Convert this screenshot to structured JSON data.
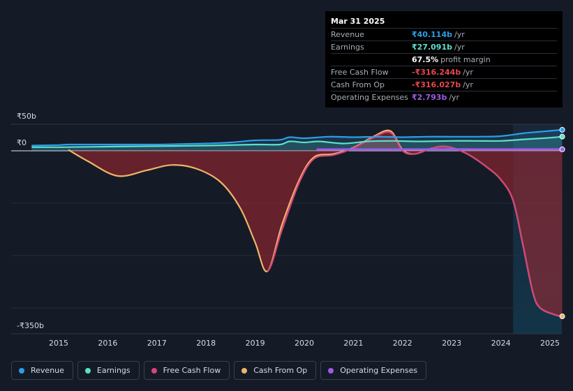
{
  "chart_data": {
    "type": "area",
    "y_tick_labels": {
      "top": "₹50b",
      "zero": "₹0",
      "bottom": "-₹350b"
    },
    "ylim": [
      -350,
      50
    ],
    "x_ticks": [
      "2015",
      "2016",
      "2017",
      "2018",
      "2019",
      "2020",
      "2021",
      "2022",
      "2023",
      "2024",
      "2025"
    ],
    "forecast_shade_start": 2024.25,
    "grid": true,
    "series": [
      {
        "name": "Revenue",
        "color": "#2d9ee8",
        "x": [
          2014.45,
          2015.0,
          2015.2,
          2016.0,
          2017.0,
          2017.5,
          2018.0,
          2018.5,
          2019.0,
          2019.5,
          2019.7,
          2020.0,
          2020.5,
          2021.0,
          2021.5,
          2022.0,
          2022.5,
          2023.0,
          2023.5,
          2024.0,
          2024.5,
          2025.0,
          2025.25
        ],
        "y": [
          10,
          11,
          12,
          12,
          12,
          13,
          14,
          16,
          20,
          21,
          26,
          24,
          27,
          26,
          27,
          26,
          27,
          27,
          27,
          28,
          34,
          38,
          40.114
        ]
      },
      {
        "name": "Earnings",
        "color": "#5de0cc",
        "x": [
          2014.45,
          2015.0,
          2016.0,
          2017.0,
          2018.0,
          2019.0,
          2019.5,
          2019.7,
          2020.0,
          2020.3,
          2020.8,
          2021.3,
          2021.8,
          2022.3,
          2023.0,
          2023.5,
          2024.0,
          2024.5,
          2025.0,
          2025.25
        ],
        "y": [
          7,
          7,
          8,
          9,
          10,
          12,
          12,
          18,
          16,
          18,
          14,
          18,
          19,
          18,
          19,
          19,
          19,
          22,
          25,
          27.091
        ]
      },
      {
        "name": "Free Cash Flow",
        "color": "#d2457a",
        "x": [
          2015.2,
          2015.6,
          2016.2,
          2016.8,
          2017.3,
          2017.8,
          2018.3,
          2018.7,
          2019.0,
          2019.25,
          2019.55,
          2019.9,
          2020.2,
          2020.6,
          2021.0,
          2021.4,
          2021.75,
          2022.0,
          2022.25,
          2022.6,
          2022.9,
          2023.3,
          2023.7,
          2024.0,
          2024.25,
          2024.45,
          2024.65,
          2024.8,
          2025.1,
          2025.25
        ],
        "y": [
          2,
          -20,
          -48,
          -37,
          -27,
          -34,
          -60,
          -110,
          -175,
          -230,
          -150,
          -60,
          -15,
          -8,
          5,
          25,
          35,
          0,
          -6,
          5,
          8,
          -5,
          -30,
          -55,
          -95,
          -180,
          -270,
          -300,
          -313,
          -316.244
        ]
      },
      {
        "name": "Cash From Op",
        "color": "#f0b46a",
        "x": [
          2015.2,
          2015.6,
          2016.2,
          2016.8,
          2017.3,
          2017.8,
          2018.3,
          2018.7,
          2019.0,
          2019.25,
          2019.55,
          2019.9,
          2020.2,
          2020.6,
          2021.0,
          2021.4,
          2021.75,
          2022.0,
          2022.25,
          2022.6,
          2022.9,
          2023.3,
          2023.7,
          2024.0,
          2024.25,
          2024.45,
          2024.65,
          2024.8,
          2025.1,
          2025.25
        ],
        "y": [
          2,
          -20,
          -48,
          -37,
          -27,
          -34,
          -60,
          -110,
          -175,
          -230,
          -140,
          -55,
          -12,
          -6,
          6,
          27,
          38,
          2,
          -6,
          5,
          8,
          -5,
          -30,
          -55,
          -95,
          -180,
          -270,
          -300,
          -313,
          -316.027
        ]
      },
      {
        "name": "Operating Expenses",
        "color": "#9b5de5",
        "x": [
          2020.25,
          2021.0,
          2022.0,
          2023.0,
          2024.0,
          2025.25
        ],
        "y": [
          2.6,
          2.7,
          2.7,
          2.8,
          2.8,
          2.793
        ]
      }
    ]
  },
  "tooltip": {
    "date": "Mar 31 2025",
    "rows": [
      {
        "label": "Revenue",
        "value": "₹40.114b",
        "unit": "/yr",
        "color": "#2d9ee8"
      },
      {
        "label": "Earnings",
        "value": "₹27.091b",
        "unit": "/yr",
        "color": "#5de0cc"
      },
      {
        "label": "",
        "value": "67.5%",
        "unit": "profit margin",
        "color": "#ffffff"
      },
      {
        "label": "Free Cash Flow",
        "value": "-₹316.244b",
        "unit": "/yr",
        "color": "#e5484d"
      },
      {
        "label": "Cash From Op",
        "value": "-₹316.027b",
        "unit": "/yr",
        "color": "#e5484d"
      },
      {
        "label": "Operating Expenses",
        "value": "₹2.793b",
        "unit": "/yr",
        "color": "#9b5de5"
      }
    ]
  },
  "legend": [
    {
      "label": "Revenue",
      "color": "#2d9ee8"
    },
    {
      "label": "Earnings",
      "color": "#5de0cc"
    },
    {
      "label": "Free Cash Flow",
      "color": "#d2457a"
    },
    {
      "label": "Cash From Op",
      "color": "#f0b46a"
    },
    {
      "label": "Operating Expenses",
      "color": "#9b5de5"
    }
  ]
}
